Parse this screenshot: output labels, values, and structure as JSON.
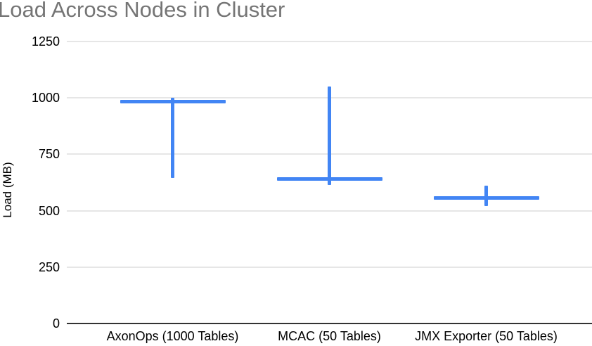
{
  "title": "Load Across Nodes in Cluster",
  "colors": {
    "series": "#4285f4",
    "title_text": "#757575",
    "axis_text": "#000000",
    "gridline": "#e6e6e6",
    "baseline": "#333333",
    "background": "#ffffff"
  },
  "chart_data": {
    "type": "candlestick",
    "title": "Load Across Nodes in Cluster",
    "xlabel": "",
    "ylabel": "Load (MB)",
    "categories": [
      "AxonOps (1000 Tables)",
      "MCAC (50 Tables)",
      "JMX Exporter (50 Tables)"
    ],
    "points": [
      {
        "category": "AxonOps (1000 Tables)",
        "low": 645,
        "center": 985,
        "high": 1000
      },
      {
        "category": "MCAC (50 Tables)",
        "low": 615,
        "center": 640,
        "high": 1050
      },
      {
        "category": "JMX Exporter (50 Tables)",
        "low": 520,
        "center": 555,
        "high": 610
      }
    ],
    "ylim": [
      0,
      1250
    ],
    "yticks": [
      0,
      250,
      500,
      750,
      1000,
      1250
    ],
    "grid": true,
    "legend": "none",
    "series_color": "#4285f4"
  }
}
